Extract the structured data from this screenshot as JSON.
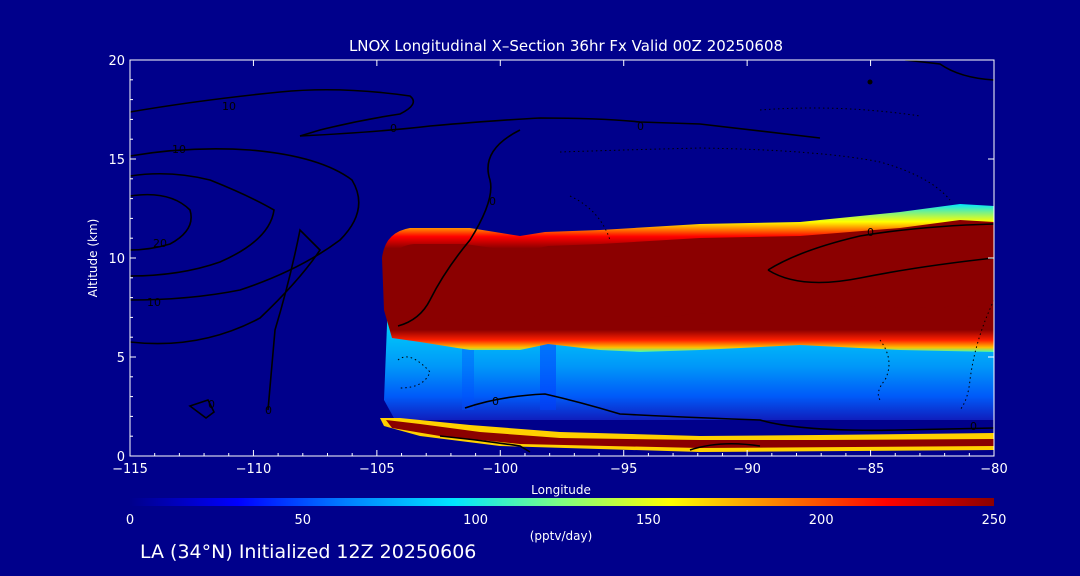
{
  "footer": {
    "caption": "LA (34°N) Initialized 12Z 20250606"
  },
  "chart_data": {
    "type": "heatmap",
    "title": "LNOX Longitudinal X–Section 36hr  Fx Valid 00Z 20250608",
    "xlabel": "Longitude",
    "ylabel": "Altitude (km)",
    "xlim": [
      -115,
      -80
    ],
    "ylim": [
      0,
      20
    ],
    "xticks": [
      "-115",
      "-110",
      "-105",
      "-100",
      "-95",
      "-90",
      "-85",
      "-80"
    ],
    "yticks": [
      "0",
      "5",
      "10",
      "15",
      "20"
    ],
    "colorbar": {
      "label": "(pptv/day)",
      "min": 0,
      "max": 250,
      "ticks": [
        "0",
        "50",
        "100",
        "150",
        "200",
        "250"
      ],
      "colors": [
        "#00008b",
        "#0000ff",
        "#0080ff",
        "#00e5ff",
        "#80ff80",
        "#ffff00",
        "#ff8000",
        "#ff0000",
        "#8b0000"
      ]
    },
    "shaded_field": {
      "field_start_lon": -104.7,
      "upper_layer": {
        "base_km": [
          6.8,
          6.9,
          7.0,
          7.0,
          6.9,
          7.0,
          6.8,
          6.7,
          6.6,
          6.7
        ],
        "top_km": [
          11.2,
          11.1,
          11.0,
          10.5,
          11.1,
          11.0,
          11.2,
          11.4,
          11.8,
          11.9
        ],
        "value": 250
      },
      "lower_layer": {
        "base_km": [
          1.2,
          0.9,
          0.7,
          0.6,
          0.6,
          0.6,
          0.6,
          0.6,
          0.6,
          0.6
        ],
        "top_km": [
          1.7,
          1.4,
          1.0,
          0.9,
          0.8,
          0.7,
          0.7,
          0.7,
          0.7,
          0.7
        ],
        "value": 250
      },
      "mid_region_value": 90
    },
    "contour_labels": [
      "10",
      "0",
      "10",
      "20",
      "10",
      "0",
      "0",
      "0",
      "0",
      "0",
      "0",
      "0"
    ]
  }
}
